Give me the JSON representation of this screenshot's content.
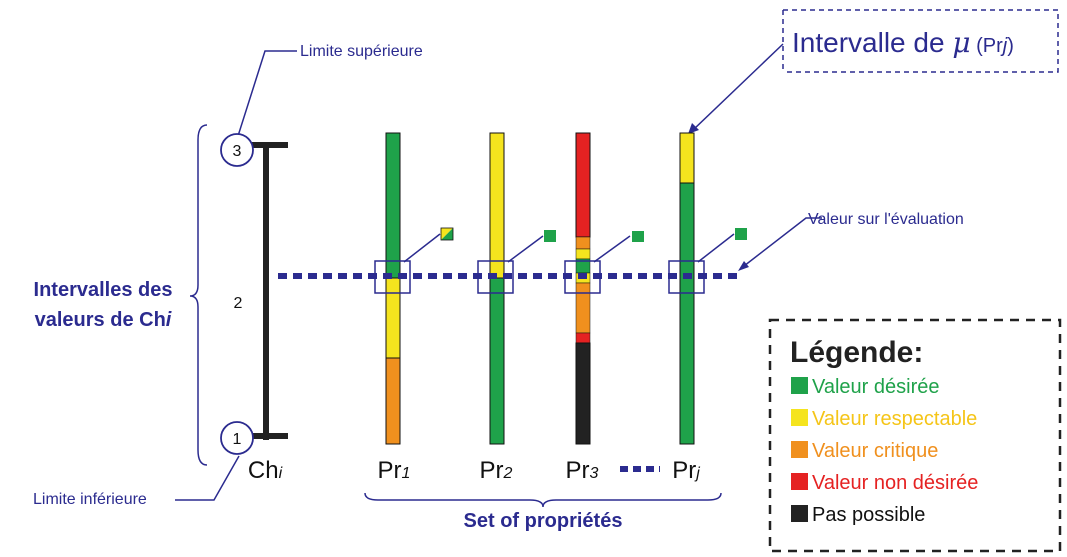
{
  "title_box": {
    "text": "Intervalle de ",
    "mu": "μ",
    "pr_open": " (Pr",
    "j": "j",
    "pr_close": ")"
  },
  "annotations": {
    "upper_limit": "Limite supérieure",
    "lower_limit": "Limite inférieure",
    "evaluation": "Valeur sur l'évaluation"
  },
  "side_label": {
    "line1": "Intervalles des",
    "line2_prefix": "valeurs de Ch",
    "line2_italic": "i"
  },
  "ch_axis": {
    "label_prefix": "Ch",
    "label_italic": "i",
    "top_value": "3",
    "middle_value": "2",
    "bottom_value": "1"
  },
  "properties": [
    {
      "prefix": "Pr",
      "sub": "1"
    },
    {
      "prefix": "Pr",
      "sub": "2"
    },
    {
      "prefix": "Pr",
      "sub": "3"
    },
    {
      "prefix": "Pr",
      "sub": "j"
    }
  ],
  "set_label": "Set of propriétés",
  "legend": {
    "title": "Légende:",
    "items": [
      {
        "label": "Valeur désirée",
        "color": "#1fa24a",
        "text_color": "#1fa24a"
      },
      {
        "label": "Valeur respectable",
        "color": "#f5e41e",
        "text_color": "#f5c518"
      },
      {
        "label": "Valeur critique",
        "color": "#f0901e",
        "text_color": "#f0901e"
      },
      {
        "label": "Valeur non désirée",
        "color": "#e52222",
        "text_color": "#e52222"
      },
      {
        "label": "Pas possible",
        "color": "#222222",
        "text_color": "#111111"
      }
    ]
  },
  "colors": {
    "accent_blue": "#2b2b8f",
    "desired": "#1fa24a",
    "respectable": "#f5e41e",
    "critical": "#f0901e",
    "undesired": "#e52222",
    "impossible": "#222222"
  }
}
